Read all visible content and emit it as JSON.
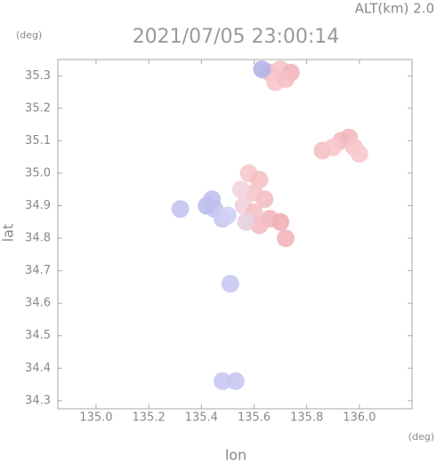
{
  "chart_data": {
    "type": "scatter",
    "title": "ALT(km)  2.0",
    "subtitle": "2021/07/05 23:00:14",
    "y_unit": "(deg)",
    "x_unit": "(deg)",
    "y_label": "lat",
    "x_label": "lon",
    "x": [
      135.66,
      135.7,
      135.74,
      135.68,
      135.72,
      135.63,
      135.93,
      135.96,
      135.98,
      135.86,
      135.9,
      136.0,
      135.58,
      135.62,
      135.6,
      135.64,
      135.56,
      135.6,
      135.66,
      135.7,
      135.62,
      135.57,
      135.72,
      135.55,
      135.45,
      135.42,
      135.48,
      135.5,
      135.44,
      135.32,
      135.51,
      135.48,
      135.53
    ],
    "y": [
      35.31,
      35.32,
      35.31,
      35.28,
      35.29,
      35.32,
      35.1,
      35.11,
      35.08,
      35.07,
      35.08,
      35.06,
      35.0,
      34.98,
      34.94,
      34.92,
      34.9,
      34.88,
      34.86,
      34.85,
      34.84,
      34.85,
      34.8,
      34.95,
      34.89,
      34.9,
      34.86,
      34.87,
      34.92,
      34.89,
      34.66,
      34.36,
      34.36
    ],
    "colors": [
      "#f4bcc2",
      "#f6c4c8",
      "#f2b6bc",
      "#f6c8cc",
      "#f4c0c4",
      "#b4b4ea",
      "#f4bcc2",
      "#f2b8be",
      "#f6c4c8",
      "#f4c0c4",
      "#f6c8cc",
      "#f6cace",
      "#f6c8cc",
      "#f4c0c4",
      "#f6c6ca",
      "#f4bec4",
      "#f0d0dc",
      "#f4c2c6",
      "#f2b8be",
      "#f0b0b6",
      "#f4bcc2",
      "#e8d0e0",
      "#f2b6bc",
      "#f2d4dc",
      "#c4c4f0",
      "#bcbcee",
      "#c8c8f2",
      "#d0d0f4",
      "#c0c0ee",
      "#c4c4f0",
      "#c8c8f2",
      "#c8c8f2",
      "#c8c8f2"
    ],
    "xlim": [
      134.855,
      136.2
    ],
    "ylim": [
      34.275,
      35.35
    ],
    "xticks": [
      {
        "value": 135,
        "label": "135.0"
      },
      135.2,
      135.4,
      135.6,
      135.8,
      {
        "value": 136,
        "label": "136.0"
      }
    ],
    "yticks": [
      34.3,
      34.4,
      34.5,
      34.6,
      34.7,
      34.8,
      34.9,
      {
        "value": 35,
        "label": "35.0"
      },
      35.1,
      35.2,
      35.3
    ]
  }
}
